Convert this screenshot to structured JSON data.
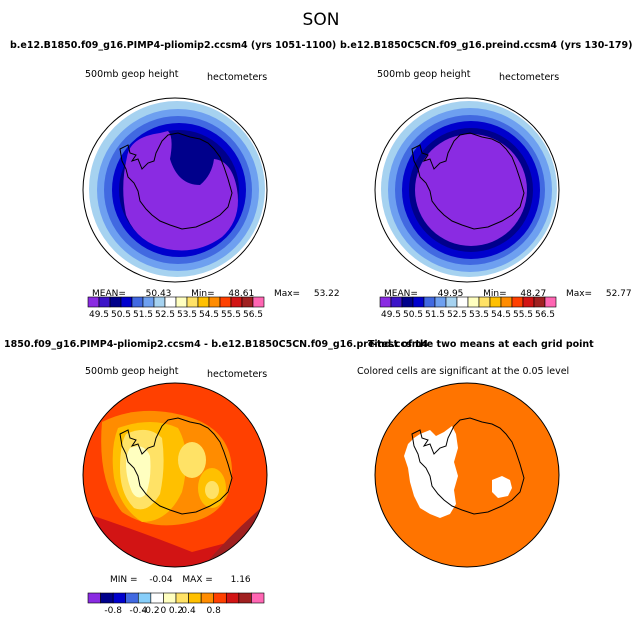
{
  "figure": {
    "title": "SON"
  },
  "colors": {
    "spectrum": [
      "#8a2be2",
      "#3c14c8",
      "#00008b",
      "#0000cd",
      "#4169e1",
      "#6ea0f0",
      "#a6d2f0",
      "#ffffff",
      "#ffffc0",
      "#ffe266",
      "#ffc000",
      "#ff8c00",
      "#ff4000",
      "#d21414",
      "#a02020",
      "#ff66b3"
    ],
    "diverging": [
      "#8a2be2",
      "#00008b",
      "#0000cd",
      "#4169e1",
      "#87cefa",
      "#ffffff",
      "#ffffc0",
      "#ffe266",
      "#ffc000",
      "#ff8c00",
      "#ff4000",
      "#d21414",
      "#a02020",
      "#ff66b3"
    ],
    "ttest": "#ff7400"
  },
  "panels": {
    "tl": {
      "title": "b.e12.B1850.f09_g16.PIMP4-pliomip2.ccsm4 (yrs 1051-1100)",
      "left_label": "500mb geop height",
      "right_label": "hectometers",
      "mean_label": "MEAN=",
      "mean_value": "50.43",
      "min_label": "Min=",
      "min_value": "48.61",
      "max_label": "Max=",
      "max_value": "53.22"
    },
    "tr": {
      "title": "b.e12.B1850C5CN.f09_g16.preind.ccsm4 (yrs 130-179)",
      "left_label": "500mb geop height",
      "right_label": "hectometers",
      "mean_label": "MEAN=",
      "mean_value": "49.95",
      "min_label": "Min=",
      "min_value": "48.27",
      "max_label": "Max=",
      "max_value": "52.77"
    },
    "bl": {
      "title": "1850.f09_g16.PIMP4-pliomip2.ccsm4 - b.e12.B1850C5CN.f09_g16.preind.ccsm4",
      "left_label": "500mb geop height",
      "right_label": "hectometers",
      "min_label": "MIN =",
      "min_value": "-0.04",
      "max_label": "MAX =",
      "max_value": "1.16"
    },
    "br": {
      "title": "T-test of the two means at each grid point",
      "subtitle": "Colored cells are significant at the 0.05 level"
    }
  },
  "chart_data": [
    {
      "type": "heatmap",
      "panel": "tl",
      "variable": "500mb geop height",
      "units": "hectometers",
      "colorbar_ticks": [
        "49.5",
        "50.5",
        "51.5",
        "52.5",
        "53.5",
        "54.5",
        "55.5",
        "56.5"
      ],
      "colorbar_levels": [
        49.0,
        49.5,
        50.0,
        50.5,
        51.0,
        51.5,
        52.0,
        52.5,
        53.0,
        53.5,
        54.0,
        54.5,
        55.0,
        55.5,
        56.0,
        56.5
      ],
      "stats": {
        "mean": 50.43,
        "min": 48.61,
        "max": 53.22
      }
    },
    {
      "type": "heatmap",
      "panel": "tr",
      "variable": "500mb geop height",
      "units": "hectometers",
      "colorbar_ticks": [
        "49.5",
        "50.5",
        "51.5",
        "52.5",
        "53.5",
        "54.5",
        "55.5",
        "56.5"
      ],
      "colorbar_levels": [
        49.0,
        49.5,
        50.0,
        50.5,
        51.0,
        51.5,
        52.0,
        52.5,
        53.0,
        53.5,
        54.0,
        54.5,
        55.0,
        55.5,
        56.0,
        56.5
      ],
      "stats": {
        "mean": 49.95,
        "min": 48.27,
        "max": 52.77
      }
    },
    {
      "type": "heatmap",
      "panel": "bl",
      "variable": "500mb geop height difference",
      "units": "hectometers",
      "colorbar_ticks": [
        "-0.8",
        "-0.4",
        "-0.2",
        "0",
        "0.2",
        "0.4",
        "0.8"
      ],
      "colorbar_tick_index": [
        1,
        3,
        4,
        5,
        6,
        7,
        9
      ],
      "stats": {
        "min": -0.04,
        "max": 1.16
      }
    },
    {
      "type": "heatmap",
      "panel": "br",
      "variable": "t-test significance",
      "significance_level": 0.05
    }
  ]
}
